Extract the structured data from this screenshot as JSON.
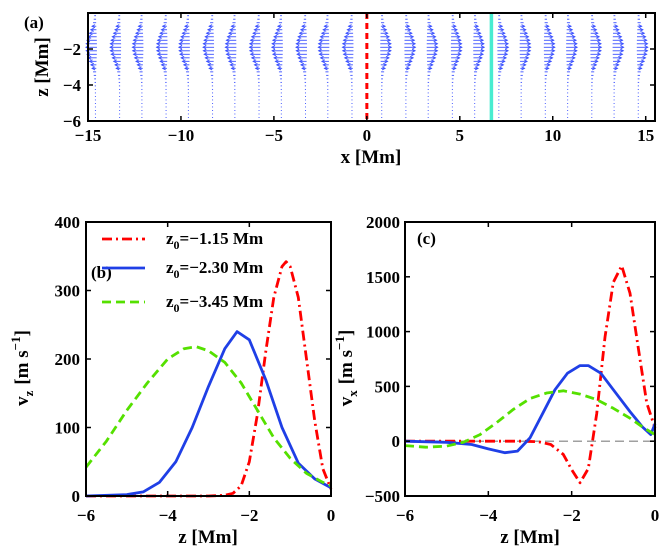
{
  "colors": {
    "red": "#ff0000",
    "blue": "#1f3fe6",
    "green": "#55e000",
    "cyan": "#48ecd0",
    "gray": "#808080",
    "quiver": "#3a50ff"
  },
  "chart_data": [
    {
      "type": "quiver",
      "panel_label": "(a)",
      "xlabel": "x [Mm]",
      "ylabel": "z [Mm]",
      "xlim": [
        -15,
        15.5
      ],
      "ylim": [
        -6,
        0
      ],
      "xticks": [
        "−15",
        "−10",
        "−5",
        "0",
        "5",
        "10",
        "15"
      ],
      "xtick_values": [
        -15,
        -10,
        -5,
        0,
        5,
        10,
        15
      ],
      "yticks": [
        "−2",
        "−4",
        "−6"
      ],
      "ytick_values": [
        -2,
        -4,
        -6
      ],
      "column_x": [
        -14.6,
        -13.3,
        -12.1,
        -10.8,
        -9.6,
        -8.3,
        -7.1,
        -5.8,
        -4.6,
        -3.3,
        -2.1,
        -0.8,
        0.8,
        2.1,
        3.3,
        4.6,
        5.8,
        7.1,
        8.3,
        9.6,
        10.8,
        12.1,
        13.3,
        14.6
      ],
      "markers": [
        {
          "x": 0,
          "style": "dashed",
          "color": "red"
        },
        {
          "x": 6.7,
          "style": "solid",
          "color": "cyan"
        }
      ]
    },
    {
      "type": "line",
      "panel_label": "(b)",
      "xlabel": "z [Mm]",
      "ylabel_base": "v",
      "ylabel_sub": "z",
      "ylabel_units": "[m s",
      "ylabel_sup": "−1",
      "ylabel_close": "]",
      "xlim": [
        -6,
        0
      ],
      "ylim": [
        0,
        400
      ],
      "xticks": [
        "−6",
        "−4",
        "−2",
        "0"
      ],
      "xtick_values": [
        -6,
        -4,
        -2,
        0
      ],
      "yticks": [
        "0",
        "100",
        "200",
        "300",
        "400"
      ],
      "ytick_values": [
        0,
        100,
        200,
        300,
        400
      ],
      "legend": [
        {
          "label_prefix": "z",
          "label_sub": "0",
          "label_suffix": "=−1.15 Mm",
          "color": "red",
          "dash": "dashdot"
        },
        {
          "label_prefix": "z",
          "label_sub": "0",
          "label_suffix": "=−2.30 Mm",
          "color": "blue",
          "dash": "solid"
        },
        {
          "label_prefix": "z",
          "label_sub": "0",
          "label_suffix": "=−3.45 Mm",
          "color": "green",
          "dash": "dashed"
        }
      ],
      "series": [
        {
          "name": "z0=−1.15 Mm",
          "color": "red",
          "dash": "dashdot",
          "x": [
            -6,
            -3,
            -2.6,
            -2.4,
            -2.2,
            -2.0,
            -1.8,
            -1.6,
            -1.4,
            -1.2,
            -1.1,
            -1.0,
            -0.8,
            -0.6,
            -0.4,
            -0.2,
            0
          ],
          "y": [
            0,
            0,
            1,
            4,
            15,
            50,
            120,
            210,
            290,
            335,
            342,
            335,
            290,
            200,
            110,
            40,
            10
          ]
        },
        {
          "name": "z0=−2.30 Mm",
          "color": "blue",
          "dash": "solid",
          "x": [
            -6,
            -5.0,
            -4.6,
            -4.2,
            -3.8,
            -3.4,
            -3.0,
            -2.6,
            -2.3,
            -2.0,
            -1.6,
            -1.2,
            -0.8,
            -0.4,
            0
          ],
          "y": [
            0,
            2,
            6,
            20,
            50,
            100,
            160,
            215,
            240,
            228,
            170,
            100,
            48,
            25,
            12
          ]
        },
        {
          "name": "z0=−3.45 Mm",
          "color": "green",
          "dash": "dashed",
          "x": [
            -6,
            -5.5,
            -5.0,
            -4.5,
            -4.0,
            -3.6,
            -3.3,
            -3.0,
            -2.6,
            -2.2,
            -1.8,
            -1.4,
            -1.0,
            -0.6,
            -0.2,
            0
          ],
          "y": [
            42,
            80,
            125,
            165,
            200,
            215,
            218,
            212,
            195,
            165,
            125,
            85,
            55,
            33,
            20,
            15
          ]
        }
      ]
    },
    {
      "type": "line",
      "panel_label": "(c)",
      "xlabel": "z [Mm]",
      "ylabel_base": "v",
      "ylabel_sub": "x",
      "ylabel_units": "[m s",
      "ylabel_sup": "−1",
      "ylabel_close": "]",
      "xlim": [
        -6,
        0
      ],
      "ylim": [
        -500,
        2000
      ],
      "xticks": [
        "−6",
        "−4",
        "−2",
        "0"
      ],
      "xtick_values": [
        -6,
        -4,
        -2,
        0
      ],
      "yticks": [
        "−500",
        "0",
        "500",
        "1000",
        "1500",
        "2000"
      ],
      "ytick_values": [
        -500,
        0,
        500,
        1000,
        1500,
        2000
      ],
      "series": [
        {
          "name": "zero",
          "color": "gray",
          "dash": "dashed",
          "x": [
            -6,
            0
          ],
          "y": [
            0,
            0
          ]
        },
        {
          "name": "z0=−1.15 Mm",
          "color": "red",
          "dash": "dashdot",
          "x": [
            -6,
            -3.2,
            -2.8,
            -2.5,
            -2.2,
            -2.0,
            -1.8,
            -1.6,
            -1.4,
            -1.2,
            -1.0,
            -0.8,
            -0.6,
            -0.4,
            -0.2,
            0
          ],
          "y": [
            0,
            0,
            -5,
            -30,
            -120,
            -260,
            -380,
            -250,
            250,
            950,
            1450,
            1600,
            1350,
            850,
            350,
            120
          ]
        },
        {
          "name": "z0=−2.30 Mm",
          "color": "blue",
          "dash": "solid",
          "x": [
            -6,
            -5.0,
            -4.4,
            -4.0,
            -3.6,
            -3.3,
            -3.0,
            -2.7,
            -2.4,
            -2.1,
            -1.8,
            -1.6,
            -1.3,
            -1.0,
            -0.6,
            -0.3,
            -0.1,
            0
          ],
          "y": [
            0,
            -10,
            -30,
            -70,
            -105,
            -90,
            30,
            250,
            470,
            620,
            690,
            690,
            620,
            470,
            270,
            130,
            60,
            160
          ]
        },
        {
          "name": "z0=−3.45 Mm",
          "color": "green",
          "dash": "dashed",
          "x": [
            -6,
            -5.5,
            -5.0,
            -4.6,
            -4.2,
            -3.8,
            -3.4,
            -3.0,
            -2.6,
            -2.2,
            -1.8,
            -1.4,
            -1.0,
            -0.6,
            -0.3,
            0
          ],
          "y": [
            -40,
            -55,
            -45,
            -10,
            60,
            170,
            290,
            390,
            440,
            460,
            430,
            380,
            300,
            210,
            130,
            60
          ]
        }
      ]
    }
  ]
}
